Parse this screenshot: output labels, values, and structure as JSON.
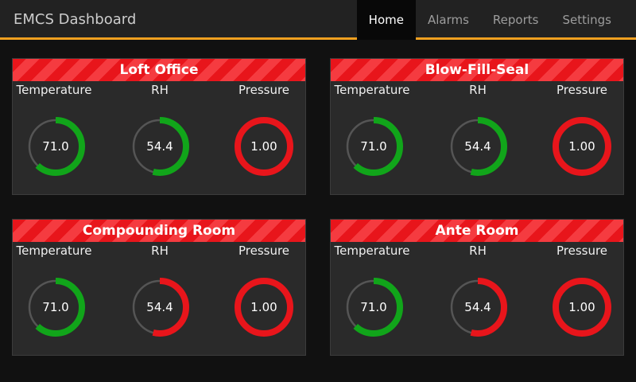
{
  "app": {
    "title": "EMCS Dashboard"
  },
  "nav": [
    {
      "label": "Home",
      "active": true
    },
    {
      "label": "Alarms",
      "active": false
    },
    {
      "label": "Reports",
      "active": false
    },
    {
      "label": "Settings",
      "active": false
    }
  ],
  "colors": {
    "accent": "#f0a020",
    "ok": "#11a51a",
    "alarm": "#e8151b",
    "track": "#555555"
  },
  "rooms": [
    {
      "name": "Loft Office",
      "metrics": [
        {
          "label": "Temperature",
          "value": "71.0",
          "fill": 0.62,
          "status": "ok"
        },
        {
          "label": "RH",
          "value": "54.4",
          "fill": 0.54,
          "status": "ok"
        },
        {
          "label": "Pressure",
          "value": "1.00",
          "fill": 1.0,
          "status": "alarm"
        }
      ]
    },
    {
      "name": "Blow-Fill-Seal",
      "metrics": [
        {
          "label": "Temperature",
          "value": "71.0",
          "fill": 0.62,
          "status": "ok"
        },
        {
          "label": "RH",
          "value": "54.4",
          "fill": 0.54,
          "status": "ok"
        },
        {
          "label": "Pressure",
          "value": "1.00",
          "fill": 1.0,
          "status": "alarm"
        }
      ]
    },
    {
      "name": "Compounding Room",
      "metrics": [
        {
          "label": "Temperature",
          "value": "71.0",
          "fill": 0.62,
          "status": "ok"
        },
        {
          "label": "RH",
          "value": "54.4",
          "fill": 0.54,
          "status": "alarm"
        },
        {
          "label": "Pressure",
          "value": "1.00",
          "fill": 1.0,
          "status": "alarm"
        }
      ]
    },
    {
      "name": "Ante Room",
      "metrics": [
        {
          "label": "Temperature",
          "value": "71.0",
          "fill": 0.62,
          "status": "ok"
        },
        {
          "label": "RH",
          "value": "54.4",
          "fill": 0.54,
          "status": "alarm"
        },
        {
          "label": "Pressure",
          "value": "1.00",
          "fill": 1.0,
          "status": "alarm"
        }
      ]
    }
  ]
}
